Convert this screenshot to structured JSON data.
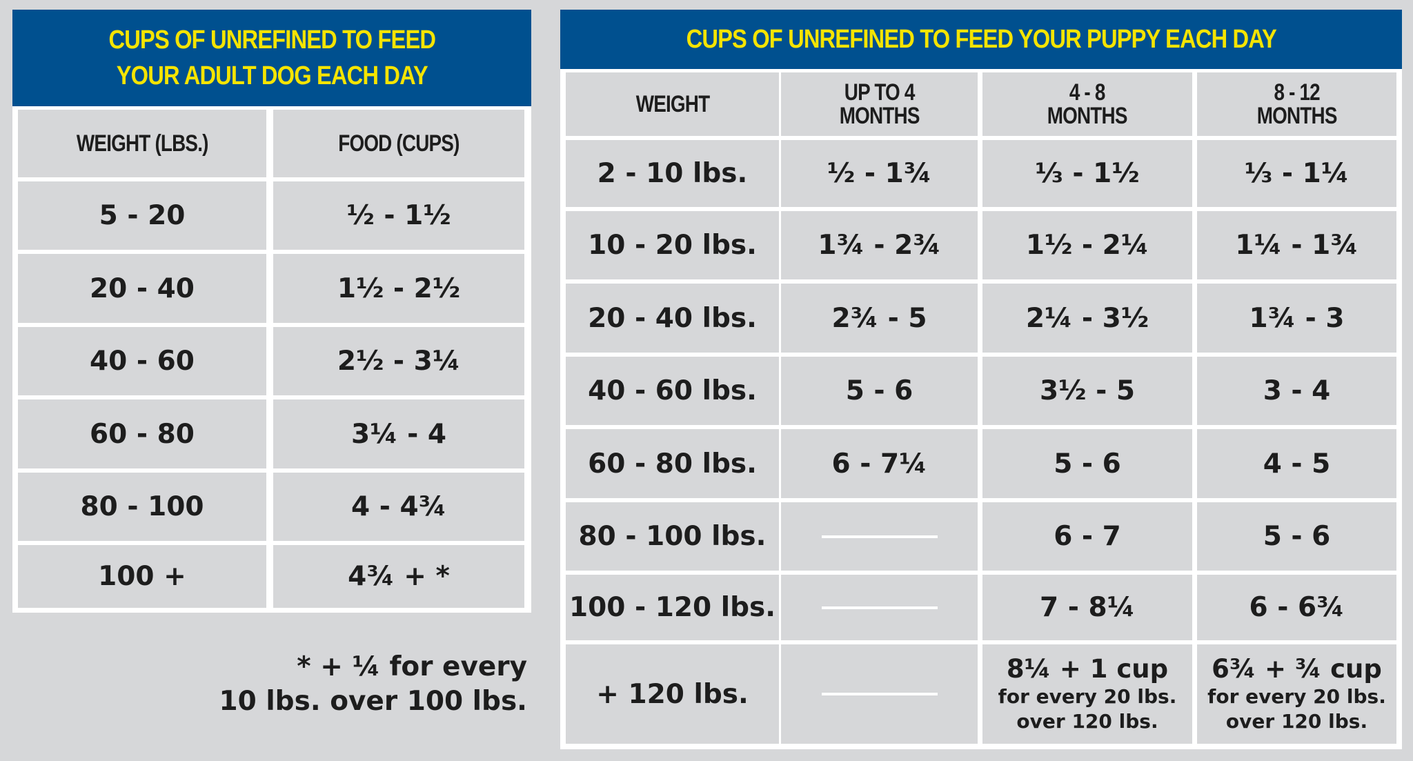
{
  "adult": {
    "title_line1": "CUPS OF UNREFINED TO FEED",
    "title_line2": "YOUR ADULT DOG EACH DAY",
    "headers": [
      "WEIGHT (LBS.)",
      "FOOD (CUPS)"
    ],
    "rows": [
      {
        "weight": "5 - 20",
        "food": "½ - 1½"
      },
      {
        "weight": "20 - 40",
        "food": "1½ - 2½"
      },
      {
        "weight": "40 - 60",
        "food": "2½ - 3¼"
      },
      {
        "weight": "60 - 80",
        "food": "3¼ - 4"
      },
      {
        "weight": "80 - 100",
        "food": "4 - 4¾"
      },
      {
        "weight": "100 +",
        "food": "4¾ + *"
      }
    ],
    "footnote_line1": "* + ¼ for every",
    "footnote_line2": "10 lbs. over 100 lbs."
  },
  "puppy": {
    "title": "CUPS OF UNREFINED TO FEED YOUR PUPPY EACH DAY",
    "headers": [
      {
        "line1": "WEIGHT",
        "line2": ""
      },
      {
        "line1": "UP TO 4",
        "line2": "MONTHS"
      },
      {
        "line1": "4 - 8",
        "line2": "MONTHS"
      },
      {
        "line1": "8 - 12",
        "line2": "MONTHS"
      }
    ],
    "rows": [
      {
        "weight": "2 - 10 lbs.",
        "m4": "½ - 1¾",
        "m8": "⅓ - 1½",
        "m12": "⅓ - 1¼"
      },
      {
        "weight": "10 - 20 lbs.",
        "m4": "1¾ - 2¾",
        "m8": "1½ - 2¼",
        "m12": "1¼ - 1¾"
      },
      {
        "weight": "20 - 40 lbs.",
        "m4": "2¾ - 5",
        "m8": "2¼ - 3½",
        "m12": "1¾ - 3"
      },
      {
        "weight": "40 - 60 lbs.",
        "m4": "5 - 6",
        "m8": "3½ - 5",
        "m12": "3 - 4"
      },
      {
        "weight": "60 - 80 lbs.",
        "m4": "6 - 7¼",
        "m8": "5 - 6",
        "m12": "4 - 5"
      },
      {
        "weight": "80 - 100 lbs.",
        "m4": "",
        "m8": "6 - 7",
        "m12": "5 - 6"
      },
      {
        "weight": "100 - 120 lbs.",
        "m4": "",
        "m8": "7 - 8¼",
        "m12": "6 - 6¾"
      }
    ],
    "last_row": {
      "weight": "+ 120 lbs.",
      "m8_main": "8¼ + 1 cup",
      "m8_sub1": "for every 20 lbs.",
      "m8_sub2": "over 120 lbs.",
      "m12_main": "6¾ + ¾ cup",
      "m12_sub1": "for every 20 lbs.",
      "m12_sub2": "over 120 lbs."
    }
  },
  "colors": {
    "banner_blue": "#00508f",
    "title_yellow": "#f5e400",
    "cell_gray": "#d6d7d9",
    "grid_white": "#ffffff"
  }
}
